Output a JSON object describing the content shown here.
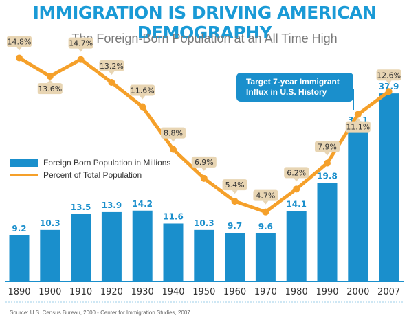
{
  "title": "IMMIGRATION IS DRIVING AMERICAN DEMOGRAPHY",
  "subtitle": "The Foreign-Born Population at an All Time High",
  "source": "Source: U.S. Census Bureau, 2000 - Center for Immigration Studies, 2007",
  "legend": {
    "bars": "Foreign Born Population in Millions",
    "line": "Percent of Total Population"
  },
  "callout": {
    "line1": "Target 7-year Immigrant",
    "line2": "Influx in U.S. History"
  },
  "colors": {
    "title": "#1a9ad6",
    "bar": "#1a8fcc",
    "line": "#f5a02a",
    "label_box": "#e8d5b3",
    "callout": "#1a8fcc"
  },
  "chart_data": {
    "type": "bar",
    "categories": [
      "1890",
      "1900",
      "1910",
      "1920",
      "1930",
      "1940",
      "1950",
      "1960",
      "1970",
      "1980",
      "1990",
      "2000",
      "2007"
    ],
    "series": [
      {
        "name": "Foreign Born Population in Millions",
        "type": "bar",
        "values": [
          9.2,
          10.3,
          13.5,
          13.9,
          14.2,
          11.6,
          10.3,
          9.7,
          9.6,
          14.1,
          19.8,
          31.1,
          37.9
        ],
        "labels": [
          "9.2",
          "10.3",
          "13.5",
          "13.9",
          "14.2",
          "11.6",
          "10.3",
          "9.7",
          "9.6",
          "14.1",
          "19.8",
          "31.1",
          "37.9"
        ]
      },
      {
        "name": "Percent of Total Population",
        "type": "line",
        "values": [
          14.8,
          13.6,
          14.7,
          13.2,
          11.6,
          8.8,
          6.9,
          5.4,
          4.7,
          6.2,
          7.9,
          11.1,
          12.6
        ],
        "labels": [
          "14.8%",
          "13.6%",
          "14.7%",
          "13.2%",
          "11.6%",
          "8.8%",
          "6.9%",
          "5.4%",
          "4.7%",
          "6.2%",
          "7.9%",
          "11.1%",
          "12.6%"
        ]
      }
    ],
    "grid": false,
    "legend_position": "left"
  }
}
